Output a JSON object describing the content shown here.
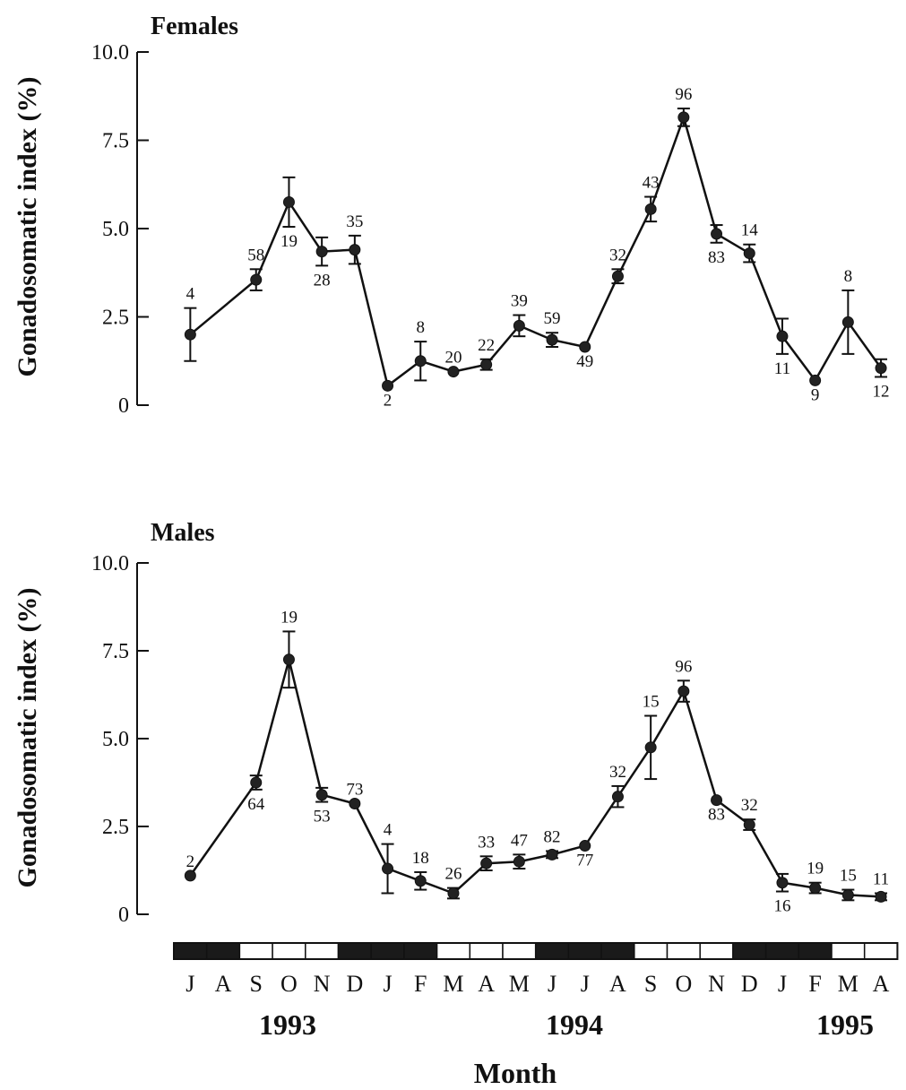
{
  "chart_data": [
    {
      "type": "line",
      "title": "Females",
      "ylabel": "Gonadosomatic index (%)",
      "xlabel": "",
      "ylim": [
        0,
        10
      ],
      "yticks": [
        "0",
        "2.5",
        "5.0",
        "7.5",
        "10.0"
      ],
      "grid": false,
      "x": [
        "J 1993",
        "S 1993",
        "O 1993",
        "N 1993",
        "D 1993",
        "J 1994",
        "F 1994",
        "M 1994",
        "A 1994",
        "M 1994",
        "J 1994",
        "J 1994",
        "A 1994",
        "S 1994",
        "O 1994",
        "N 1994",
        "D 1994",
        "J 1995",
        "F 1995",
        "M 1995",
        "A 1995"
      ],
      "values": [
        2.0,
        3.55,
        5.75,
        4.35,
        4.4,
        0.55,
        1.25,
        0.95,
        1.15,
        2.25,
        1.85,
        1.65,
        3.65,
        5.55,
        8.15,
        4.85,
        4.3,
        1.95,
        0.7,
        2.35,
        1.05
      ],
      "errors": [
        0.75,
        0.3,
        0.7,
        0.4,
        0.4,
        0,
        0.55,
        0,
        0.15,
        0.3,
        0.2,
        0,
        0.2,
        0.35,
        0.25,
        0.25,
        0.25,
        0.5,
        0,
        0.9,
        0.25
      ],
      "n": [
        "4",
        "58",
        "19",
        "28",
        "35",
        "2",
        "8",
        "20",
        "22",
        "39",
        "59",
        "49",
        "32",
        "43",
        "96",
        "83",
        "14",
        "11",
        "9",
        "8",
        "12"
      ]
    },
    {
      "type": "line",
      "title": "Males",
      "ylabel": "Gonadosomatic index (%)",
      "xlabel": "Month",
      "ylim": [
        0,
        10
      ],
      "yticks": [
        "0",
        "2.5",
        "5.0",
        "7.5",
        "10.0"
      ],
      "grid": false,
      "x": [
        "J 1993",
        "S 1993",
        "O 1993",
        "N 1993",
        "D 1993",
        "J 1994",
        "F 1994",
        "M 1994",
        "A 1994",
        "M 1994",
        "J 1994",
        "J 1994",
        "A 1994",
        "S 1994",
        "O 1994",
        "N 1994",
        "D 1994",
        "J 1995",
        "F 1995",
        "M 1995",
        "A 1995"
      ],
      "values": [
        1.1,
        3.75,
        7.25,
        3.4,
        3.15,
        1.3,
        0.95,
        0.6,
        1.45,
        1.5,
        1.7,
        1.95,
        3.35,
        4.75,
        6.35,
        3.25,
        2.55,
        0.9,
        0.75,
        0.55,
        0.5
      ],
      "errors": [
        0,
        0.2,
        0.8,
        0.2,
        0,
        0.7,
        0.25,
        0.15,
        0.2,
        0.2,
        0.1,
        0,
        0.3,
        0.9,
        0.3,
        0,
        0.15,
        0.25,
        0.15,
        0.15,
        0.1
      ],
      "n": [
        "2",
        "64",
        "19",
        "53",
        "73",
        "4",
        "18",
        "26",
        "33",
        "47",
        "82",
        "77",
        "32",
        "15",
        "96",
        "83",
        "32",
        "16",
        "19",
        "15",
        "11"
      ]
    }
  ],
  "months": [
    "J",
    "A",
    "S",
    "O",
    "N",
    "D",
    "J",
    "F",
    "M",
    "A",
    "M",
    "J",
    "J",
    "A",
    "S",
    "O",
    "N",
    "D",
    "J",
    "F",
    "M",
    "A"
  ],
  "years": [
    "1993",
    "1994",
    "1995"
  ],
  "light_bar": [
    "dark",
    "dark",
    "light",
    "light",
    "light",
    "dark",
    "dark",
    "dark",
    "light",
    "light",
    "light",
    "dark",
    "dark",
    "dark",
    "light",
    "light",
    "light",
    "dark",
    "dark",
    "dark",
    "light",
    "light"
  ]
}
